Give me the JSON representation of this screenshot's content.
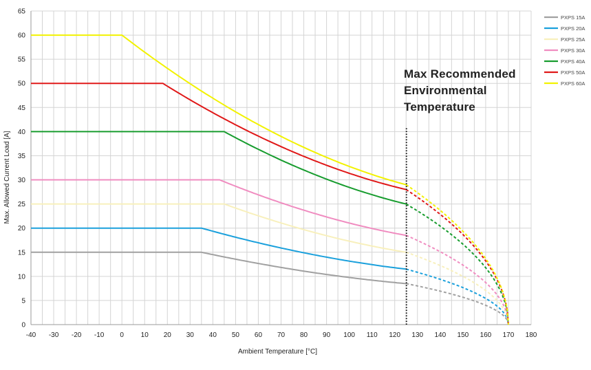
{
  "chart_data": {
    "type": "line",
    "xlabel": "Ambient Temperature [°C]",
    "ylabel": "Max. Allowed Current Load [A]",
    "xlim": [
      -40,
      180
    ],
    "ylim": [
      0,
      65
    ],
    "x_ticks": [
      -40,
      -30,
      -20,
      -10,
      0,
      10,
      20,
      30,
      40,
      50,
      60,
      70,
      80,
      90,
      100,
      110,
      120,
      130,
      140,
      150,
      160,
      170,
      180
    ],
    "y_ticks": [
      0,
      5,
      10,
      15,
      20,
      25,
      30,
      35,
      40,
      45,
      50,
      55,
      60,
      65
    ],
    "x_minor_step": 5,
    "grid": true,
    "legend_position": "top-right",
    "series": [
      {
        "name": "PXPS 15A",
        "color": "#a0a0a0",
        "plateau_value": 15,
        "derate_start": 35,
        "value_at_125": 8.5,
        "end_x": 170,
        "end_y": 0
      },
      {
        "name": "PXPS 20A",
        "color": "#1aa0dc",
        "plateau_value": 20,
        "derate_start": 35,
        "value_at_125": 11.5,
        "end_x": 170,
        "end_y": 0
      },
      {
        "name": "PXPS 25A",
        "color": "#f8f0bc",
        "plateau_value": 25,
        "derate_start": 45,
        "value_at_125": 15,
        "end_x": 170,
        "end_y": 0
      },
      {
        "name": "PXPS 30A",
        "color": "#f08cc0",
        "plateau_value": 30,
        "derate_start": 43,
        "value_at_125": 18.5,
        "end_x": 170,
        "end_y": 0
      },
      {
        "name": "PXPS 40A",
        "color": "#179c2e",
        "plateau_value": 40,
        "derate_start": 45,
        "value_at_125": 25,
        "end_x": 170,
        "end_y": 0
      },
      {
        "name": "PXPS 50A",
        "color": "#e01818",
        "plateau_value": 50,
        "derate_start": 18,
        "value_at_125": 28,
        "end_x": 170,
        "end_y": 0
      },
      {
        "name": "PXPS 60A",
        "color": "#f2f200",
        "plateau_value": 60,
        "derate_start": 0,
        "value_at_125": 29,
        "end_x": 170,
        "end_y": 0
      }
    ],
    "annotations": [
      {
        "lines": [
          "Max Recommended",
          "Environmental",
          "Temperature"
        ],
        "marker_x": 125,
        "marker_style": "dotted-vertical",
        "marker_y_range": [
          0,
          41
        ]
      }
    ],
    "line_style_note": "solid up to 125 °C, dashed beyond"
  }
}
